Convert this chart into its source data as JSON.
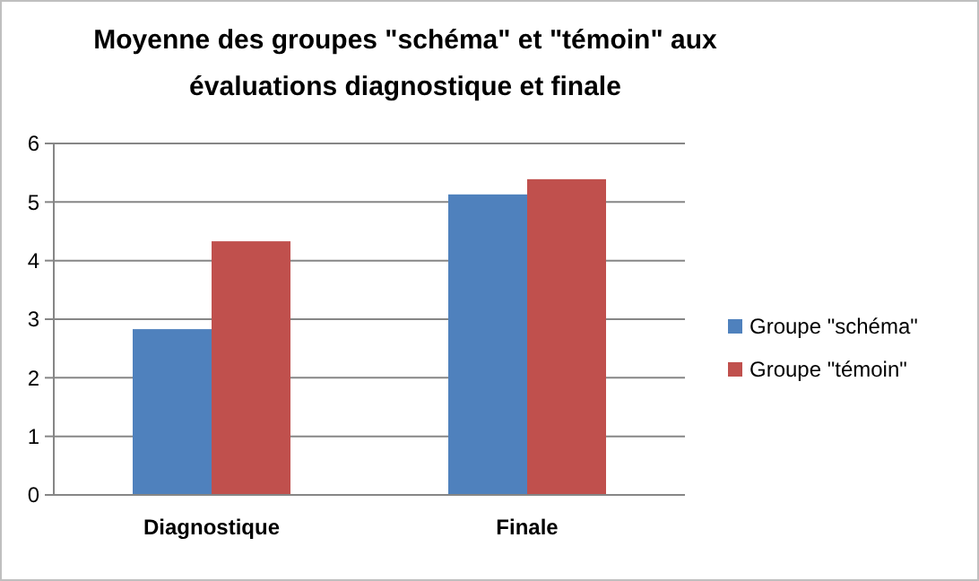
{
  "chart_data": {
    "type": "bar",
    "title": "Moyenne des groupes \"schéma\" et \"témoin\" aux\névaluations diagnostique et finale",
    "categories": [
      "Diagnostique",
      "Finale"
    ],
    "series": [
      {
        "name": "Groupe \"schéma\"",
        "color": "#4f81bd",
        "values": [
          2.83,
          5.13
        ]
      },
      {
        "name": "Groupe \"témoin\"",
        "color": "#c0504d",
        "values": [
          4.33,
          5.39
        ]
      }
    ],
    "ylim": [
      0,
      6
    ],
    "yticks": [
      0,
      1,
      2,
      3,
      4,
      5,
      6
    ],
    "grid": "y",
    "legend": "right"
  }
}
